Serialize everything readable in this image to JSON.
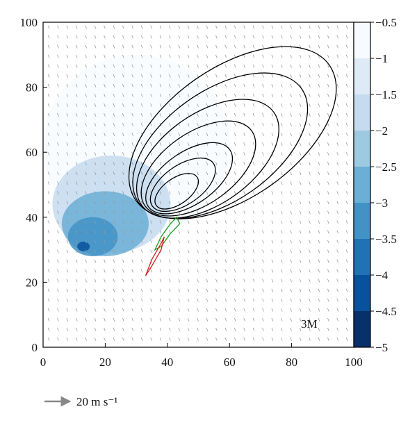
{
  "chart_data": {
    "type": "contour",
    "title": "",
    "xlabel": "",
    "ylabel": "",
    "xlim": [
      0,
      100
    ],
    "ylim": [
      0,
      100
    ],
    "x_ticks": [
      "0",
      "20",
      "40",
      "60",
      "80",
      "100"
    ],
    "y_ticks": [
      "0",
      "20",
      "40",
      "60",
      "80",
      "100"
    ],
    "panel_label": "3M",
    "colorbar": {
      "range": [
        -5,
        -0.5
      ],
      "levels": [
        -5,
        -4.5,
        -4,
        -3.5,
        -3,
        -2.5,
        -2,
        -1.5,
        -1,
        -0.5
      ],
      "tick_labels": [
        "−0.5",
        "−1",
        "−1.5",
        "−2",
        "−2.5",
        "−3",
        "−3.5",
        "−4",
        "−4.5",
        "−5"
      ],
      "colors": [
        "#08306b",
        "#08519c",
        "#2171b5",
        "#4292c6",
        "#6baed6",
        "#9ecae1",
        "#c6dbef",
        "#deebf7",
        "#f7fbff"
      ]
    },
    "shaded_field": [
      {
        "level": -1.0,
        "center": [
          30,
          62
        ],
        "radius_x": 30,
        "radius_y": 28
      },
      {
        "level": -2.0,
        "center": [
          22,
          44
        ],
        "radius_x": 19,
        "radius_y": 15
      },
      {
        "level": -3.0,
        "center": [
          20,
          38
        ],
        "radius_x": 14,
        "radius_y": 10
      },
      {
        "level": -3.5,
        "center": [
          16,
          34
        ],
        "radius_x": 8,
        "radius_y": 6
      },
      {
        "level": -4.5,
        "center": [
          13,
          31
        ],
        "radius_x": 2,
        "radius_y": 1.5
      }
    ],
    "black_contours": [
      {
        "center": [
          43,
          48
        ],
        "radius_x": 8,
        "radius_y": 4,
        "angle": 35
      },
      {
        "center": [
          45,
          50
        ],
        "radius_x": 12,
        "radius_y": 6,
        "angle": 35
      },
      {
        "center": [
          47,
          52
        ],
        "radius_x": 16,
        "radius_y": 8,
        "angle": 35
      },
      {
        "center": [
          50,
          55
        ],
        "radius_x": 21,
        "radius_y": 11,
        "angle": 35
      },
      {
        "center": [
          53,
          58
        ],
        "radius_x": 26,
        "radius_y": 14,
        "angle": 35
      },
      {
        "center": [
          57,
          62
        ],
        "radius_x": 32,
        "radius_y": 17,
        "angle": 35
      },
      {
        "center": [
          61,
          66
        ],
        "radius_x": 38,
        "radius_y": 20,
        "angle": 35
      }
    ],
    "green_contour": [
      [
        36,
        30
      ],
      [
        38,
        34
      ],
      [
        41,
        38
      ],
      [
        43,
        40
      ],
      [
        44,
        38
      ],
      [
        41,
        35
      ],
      [
        38,
        31
      ]
    ],
    "red_contour": [
      [
        33,
        22
      ],
      [
        35,
        27
      ],
      [
        38,
        32
      ],
      [
        39,
        34
      ],
      [
        38,
        30
      ],
      [
        35,
        25
      ]
    ],
    "vector_field": {
      "u": -0.4,
      "v": 1.0,
      "spacing": 3
    },
    "reference_vector_label": "20 m s⁻¹"
  }
}
